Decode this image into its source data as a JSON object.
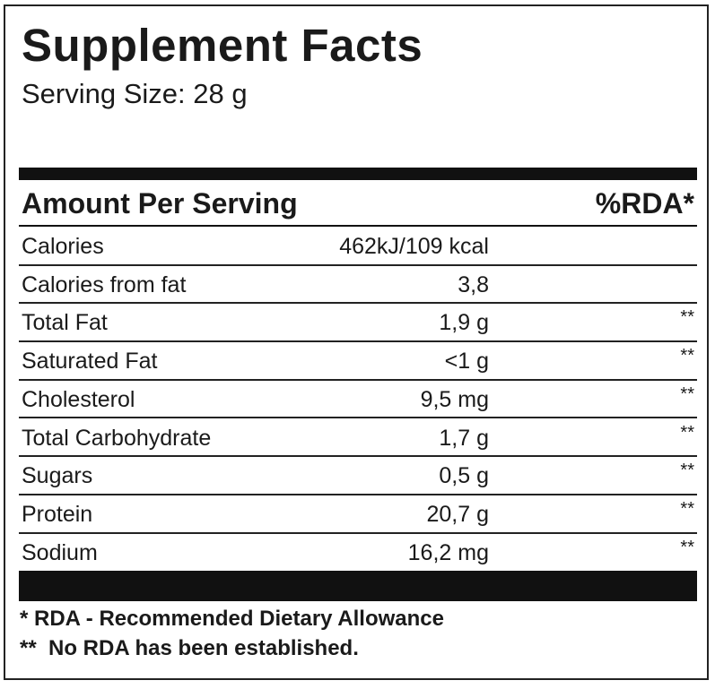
{
  "title": "Supplement Facts",
  "serving_size": "Serving Size: 28 g",
  "table": {
    "header": {
      "amount": "Amount Per Serving",
      "rda": "%RDA*"
    },
    "rows": [
      {
        "name": "Calories",
        "amount": "462kJ/109 kcal"
      },
      {
        "name": "Calories from fat",
        "amount": "3,8"
      },
      {
        "name": "Total Fat",
        "amount": "1,9 g",
        "rda": "**"
      },
      {
        "name": "Saturated Fat",
        "amount": "<1 g",
        "rda": "**"
      },
      {
        "name": "Cholesterol",
        "amount": "9,5 mg",
        "rda": "**"
      },
      {
        "name": "Total Carbohydrate",
        "amount": "1,7 g",
        "rda": "**"
      },
      {
        "name": "Sugars",
        "amount": "0,5 g",
        "rda": "**"
      },
      {
        "name": "Protein",
        "amount": "20,7 g",
        "rda": "**"
      },
      {
        "name": "Sodium",
        "amount": "16,2 mg",
        "rda": "**"
      }
    ]
  },
  "footnotes": [
    "* RDA - Recommended Dietary Allowance",
    "**  No RDA has been established."
  ]
}
